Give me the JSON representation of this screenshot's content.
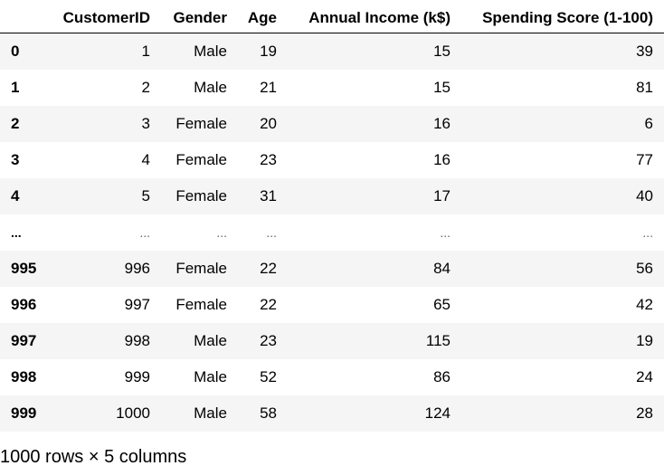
{
  "dataframe": {
    "columns": [
      "",
      "CustomerID",
      "Gender",
      "Age",
      "Annual Income (k$)",
      "Spending Score (1-100)"
    ],
    "rows": [
      {
        "index": "0",
        "cells": [
          "1",
          "Male",
          "19",
          "15",
          "39"
        ]
      },
      {
        "index": "1",
        "cells": [
          "2",
          "Male",
          "21",
          "15",
          "81"
        ]
      },
      {
        "index": "2",
        "cells": [
          "3",
          "Female",
          "20",
          "16",
          "6"
        ]
      },
      {
        "index": "3",
        "cells": [
          "4",
          "Female",
          "23",
          "16",
          "77"
        ]
      },
      {
        "index": "4",
        "cells": [
          "5",
          "Female",
          "31",
          "17",
          "40"
        ]
      },
      {
        "index": "...",
        "cells": [
          "...",
          "...",
          "...",
          "...",
          "..."
        ]
      },
      {
        "index": "995",
        "cells": [
          "996",
          "Female",
          "22",
          "84",
          "56"
        ]
      },
      {
        "index": "996",
        "cells": [
          "997",
          "Female",
          "22",
          "65",
          "42"
        ]
      },
      {
        "index": "997",
        "cells": [
          "998",
          "Male",
          "23",
          "115",
          "19"
        ]
      },
      {
        "index": "998",
        "cells": [
          "999",
          "Male",
          "52",
          "86",
          "24"
        ]
      },
      {
        "index": "999",
        "cells": [
          "1000",
          "Male",
          "58",
          "124",
          "28"
        ]
      }
    ],
    "shape_text": "1000 rows × 5 columns"
  }
}
